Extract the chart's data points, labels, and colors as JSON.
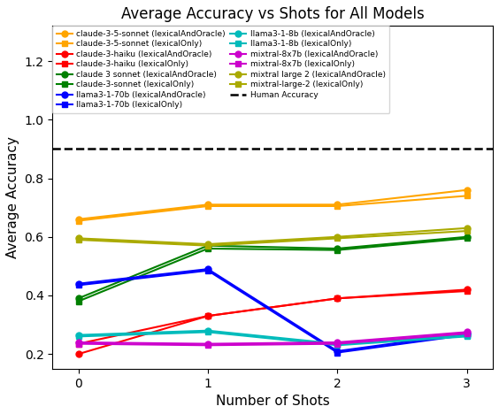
{
  "title": "Average Accuracy vs Shots for All Models",
  "xlabel": "Number of Shots",
  "ylabel": "Average Accuracy",
  "shots": [
    0,
    1,
    2,
    3
  ],
  "human_accuracy": 0.9,
  "ylim": [
    0.15,
    1.32
  ],
  "series": [
    {
      "label": "claude-3-5-sonnet (lexicalAndOracle)",
      "color": "#FFA500",
      "marker": "o",
      "values": [
        0.66,
        0.71,
        0.71,
        0.76
      ]
    },
    {
      "label": "claude-3-5-sonnet (lexicalOnly)",
      "color": "#FFA500",
      "marker": "s",
      "values": [
        0.655,
        0.705,
        0.705,
        0.74
      ]
    },
    {
      "label": "claude-3-haiku (lexicalAndOracle)",
      "color": "#FF0000",
      "marker": "o",
      "values": [
        0.2,
        0.33,
        0.39,
        0.42
      ]
    },
    {
      "label": "claude-3-haiku (lexicalOnly)",
      "color": "#FF0000",
      "marker": "s",
      "values": [
        0.235,
        0.33,
        0.39,
        0.415
      ]
    },
    {
      "label": "claude 3 sonnet (lexicalAndOracle)",
      "color": "#008000",
      "marker": "o",
      "values": [
        0.39,
        0.57,
        0.56,
        0.6
      ]
    },
    {
      "label": "claude-3-sonnet (lexicalOnly)",
      "color": "#008000",
      "marker": "s",
      "values": [
        0.38,
        0.56,
        0.555,
        0.595
      ]
    },
    {
      "label": "llama3-1-70b (lexicalAndOracle)",
      "color": "#0000FF",
      "marker": "o",
      "values": [
        0.44,
        0.49,
        0.21,
        0.27
      ]
    },
    {
      "label": "llama3-1-70b (lexicalOnly)",
      "color": "#0000FF",
      "marker": "s",
      "values": [
        0.435,
        0.485,
        0.205,
        0.265
      ]
    },
    {
      "label": "llama3-1-8b (lexicalAndOracle)",
      "color": "#00BBBB",
      "marker": "o",
      "values": [
        0.265,
        0.28,
        0.235,
        0.265
      ]
    },
    {
      "label": "llama3-1-8b (lexicalOnly)",
      "color": "#00BBBB",
      "marker": "s",
      "values": [
        0.26,
        0.275,
        0.23,
        0.26
      ]
    },
    {
      "label": "mixtral-8x7b (lexicalAndOracle)",
      "color": "#CC00CC",
      "marker": "o",
      "values": [
        0.24,
        0.235,
        0.24,
        0.275
      ]
    },
    {
      "label": "mixtral-8x7b (lexicalOnly)",
      "color": "#CC00CC",
      "marker": "s",
      "values": [
        0.235,
        0.23,
        0.235,
        0.27
      ]
    },
    {
      "label": "mixtral large 2 (lexicalAndOracle)",
      "color": "#AAAA00",
      "marker": "o",
      "values": [
        0.595,
        0.575,
        0.6,
        0.63
      ]
    },
    {
      "label": "mixtral-large-2 (lexicalOnly)",
      "color": "#AAAA00",
      "marker": "s",
      "values": [
        0.59,
        0.57,
        0.595,
        0.62
      ]
    }
  ],
  "legend_fontsize": 6.5,
  "title_fontsize": 12,
  "axis_label_fontsize": 11,
  "tick_fontsize": 10
}
